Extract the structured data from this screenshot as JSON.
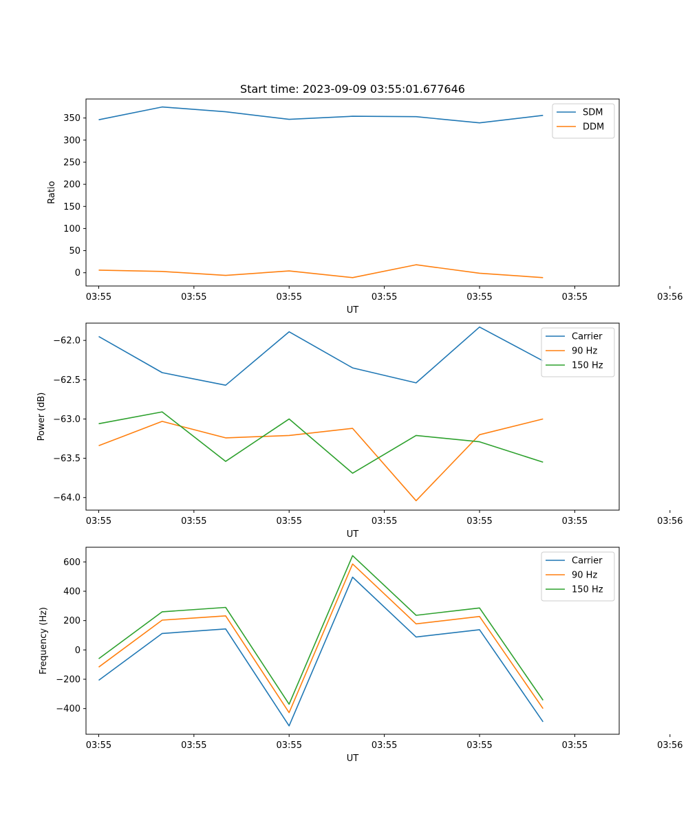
{
  "chart_data": [
    {
      "type": "line",
      "title": "Start time: 2023-09-09 03:55:01.677646",
      "xlabel": "UT",
      "ylabel": "Ratio",
      "x": [
        1,
        2,
        3,
        4,
        5,
        6,
        7,
        8
      ],
      "xlim": [
        0.8,
        9.2
      ],
      "x_ticks": [
        1,
        2.5,
        4,
        5.5,
        7,
        8.5,
        10
      ],
      "x_tick_labels": [
        "03:55",
        "03:55",
        "03:55",
        "03:55",
        "03:55",
        "03:55",
        "03:56"
      ],
      "ylim": [
        -30,
        393
      ],
      "y_ticks": [
        0,
        50,
        100,
        150,
        200,
        250,
        300,
        350
      ],
      "y_tick_labels": [
        "0",
        "50",
        "100",
        "150",
        "200",
        "250",
        "300",
        "350"
      ],
      "legend_position": "top-right",
      "series": [
        {
          "name": "SDM",
          "color": "#1f77b4",
          "values": [
            346,
            375,
            364,
            347,
            354,
            353,
            339,
            356
          ]
        },
        {
          "name": "DDM",
          "color": "#ff7f0e",
          "values": [
            6,
            3,
            -6,
            4,
            -11,
            18,
            -1,
            -11
          ]
        }
      ]
    },
    {
      "type": "line",
      "xlabel": "UT",
      "ylabel": "Power (dB)",
      "x": [
        1,
        2,
        3,
        4,
        5,
        6,
        7,
        8
      ],
      "xlim": [
        0.8,
        9.2
      ],
      "x_ticks": [
        1,
        2.5,
        4,
        5.5,
        7,
        8.5,
        10
      ],
      "x_tick_labels": [
        "03:55",
        "03:55",
        "03:55",
        "03:55",
        "03:55",
        "03:55",
        "03:56"
      ],
      "ylim": [
        -64.16,
        -61.78
      ],
      "y_ticks": [
        -64.0,
        -63.5,
        -63.0,
        -62.5,
        -62.0
      ],
      "y_tick_labels": [
        "−64.0",
        "−63.5",
        "−63.0",
        "−62.5",
        "−62.0"
      ],
      "legend_position": "top-right",
      "series": [
        {
          "name": "Carrier",
          "color": "#1f77b4",
          "values": [
            -61.95,
            -62.41,
            -62.57,
            -61.89,
            -62.35,
            -62.54,
            -61.83,
            -62.26
          ]
        },
        {
          "name": "90 Hz",
          "color": "#ff7f0e",
          "values": [
            -63.34,
            -63.03,
            -63.24,
            -63.21,
            -63.12,
            -64.04,
            -63.2,
            -63.0
          ]
        },
        {
          "name": "150 Hz",
          "color": "#2ca02c",
          "values": [
            -63.06,
            -62.91,
            -63.54,
            -63.0,
            -63.69,
            -63.21,
            -63.29,
            -63.55
          ]
        }
      ]
    },
    {
      "type": "line",
      "xlabel": "UT",
      "ylabel": "Frequency (Hz)",
      "x": [
        1,
        2,
        3,
        4,
        5,
        6,
        7,
        8
      ],
      "xlim": [
        0.8,
        9.2
      ],
      "x_ticks": [
        1,
        2.5,
        4,
        5.5,
        7,
        8.5,
        10
      ],
      "x_tick_labels": [
        "03:55",
        "03:55",
        "03:55",
        "03:55",
        "03:55",
        "03:55",
        "03:56"
      ],
      "ylim": [
        -575,
        700
      ],
      "y_ticks": [
        -400,
        -200,
        0,
        200,
        400,
        600
      ],
      "y_tick_labels": [
        "−400",
        "−200",
        "0",
        "200",
        "400",
        "600"
      ],
      "legend_position": "top-right",
      "series": [
        {
          "name": "Carrier",
          "color": "#1f77b4",
          "values": [
            -207,
            112,
            143,
            -518,
            496,
            88,
            138,
            -490
          ]
        },
        {
          "name": "90 Hz",
          "color": "#ff7f0e",
          "values": [
            -117,
            203,
            232,
            -428,
            586,
            178,
            228,
            -400
          ]
        },
        {
          "name": "150 Hz",
          "color": "#2ca02c",
          "values": [
            -60,
            260,
            290,
            -370,
            643,
            236,
            286,
            -343
          ]
        }
      ]
    }
  ]
}
